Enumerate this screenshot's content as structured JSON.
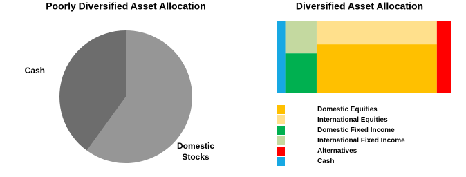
{
  "chart_data": [
    {
      "type": "pie",
      "title": "Poorly Diversified Asset Allocation",
      "categories": [
        "Domestic Stocks",
        "Cash"
      ],
      "values": [
        60,
        40
      ],
      "colors": [
        "#969696",
        "#6d6d6d"
      ]
    },
    {
      "type": "mosaic",
      "title": "Diversified Asset Allocation",
      "series": [
        {
          "name": "Domestic Equities",
          "color": "#ffc000",
          "value": 47
        },
        {
          "name": "International Equities",
          "color": "#ffe08c",
          "value": 22
        },
        {
          "name": "Domestic Fixed Income",
          "color": "#00b050",
          "value": 10
        },
        {
          "name": "International Fixed Income",
          "color": "#c4d9a0",
          "value": 8
        },
        {
          "name": "Alternatives",
          "color": "#ff0000",
          "value": 8
        },
        {
          "name": "Cash",
          "color": "#17a8e3",
          "value": 5
        }
      ]
    }
  ]
}
